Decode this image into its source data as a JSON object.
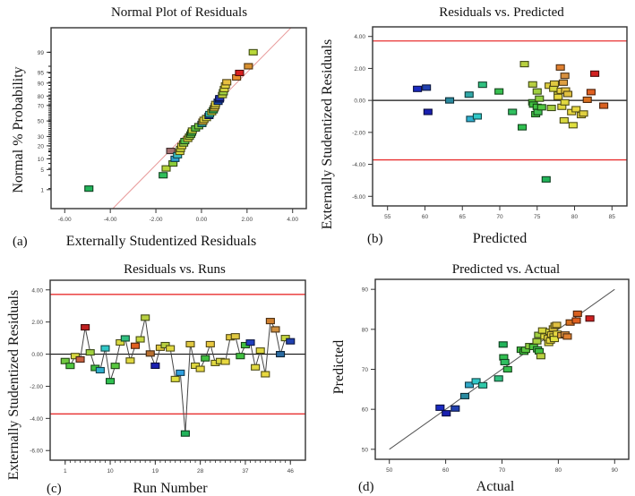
{
  "chart_data": [
    {
      "id": "a",
      "type": "scatter",
      "panel_label": "(a)",
      "title": "Normal Plot of Residuals",
      "xlabel": "Externally Studentized Residuals",
      "ylabel": "Normal % Probability",
      "xlim": [
        -6.6,
        4.6
      ],
      "x_ticks": [
        -6,
        -4,
        -2,
        0,
        2,
        4
      ],
      "x_tick_labels": [
        "-6.00",
        "-4.00",
        "-2.00",
        "0.00",
        "2.00",
        "4.00"
      ],
      "y_scale": "normal-probability",
      "y_ticks": [
        1,
        5,
        10,
        20,
        30,
        50,
        70,
        80,
        90,
        95,
        99
      ],
      "y_tick_labels": [
        "1",
        "5",
        "10",
        "20",
        "30",
        "50",
        "70",
        "80",
        "90",
        "95",
        "99"
      ],
      "reference_line": {
        "color": "#e89a9a",
        "from": [
          -4.05,
          0.1
        ],
        "to": [
          4.1,
          99.95
        ]
      },
      "points": [
        {
          "x": -4.94,
          "y": 1.1,
          "color": "#22b45a"
        },
        {
          "x": -1.68,
          "y": 3.3,
          "color": "#2fbf5a"
        },
        {
          "x": -1.55,
          "y": 5.4,
          "color": "#b5d43a"
        },
        {
          "x": -1.35,
          "y": 15.5,
          "color": "#a77070"
        },
        {
          "x": -1.25,
          "y": 7.5,
          "color": "#8acb3a"
        },
        {
          "x": -1.16,
          "y": 10.0,
          "color": "#2ea0d0"
        },
        {
          "x": -1.05,
          "y": 12.3,
          "color": "#38c0c8"
        },
        {
          "x": -0.95,
          "y": 14.8,
          "color": "#d8d840"
        },
        {
          "x": -0.92,
          "y": 17.2,
          "color": "#c8d43a"
        },
        {
          "x": -0.86,
          "y": 19.8,
          "color": "#e8e040"
        },
        {
          "x": -0.78,
          "y": 22.3,
          "color": "#9ad040"
        },
        {
          "x": -0.73,
          "y": 24.8,
          "color": "#55c84a"
        },
        {
          "x": -0.6,
          "y": 27.2,
          "color": "#e0dc40"
        },
        {
          "x": -0.53,
          "y": 29.7,
          "color": "#a8d040"
        },
        {
          "x": -0.47,
          "y": 32.2,
          "color": "#70c840"
        },
        {
          "x": -0.43,
          "y": 34.7,
          "color": "#3cc050"
        },
        {
          "x": -0.4,
          "y": 37.2,
          "color": "#c0d83a"
        },
        {
          "x": -0.26,
          "y": 40.0,
          "color": "#58c040"
        },
        {
          "x": -0.12,
          "y": 43.0,
          "color": "#78c840"
        },
        {
          "x": 0.02,
          "y": 46.0,
          "color": "#2aa0a0"
        },
        {
          "x": 0.06,
          "y": 49.0,
          "color": "#e8c040"
        },
        {
          "x": 0.11,
          "y": 51.5,
          "color": "#e8d840"
        },
        {
          "x": 0.22,
          "y": 54.0,
          "color": "#d8d840"
        },
        {
          "x": 0.33,
          "y": 56.8,
          "color": "#1a3a90"
        },
        {
          "x": 0.36,
          "y": 59.2,
          "color": "#30c8c0"
        },
        {
          "x": 0.45,
          "y": 61.7,
          "color": "#d0d840"
        },
        {
          "x": 0.52,
          "y": 64.2,
          "color": "#30b858"
        },
        {
          "x": 0.56,
          "y": 66.7,
          "color": "#e0c040"
        },
        {
          "x": 0.6,
          "y": 69.2,
          "color": "#d8c840"
        },
        {
          "x": 0.62,
          "y": 71.7,
          "color": "#e8d840"
        },
        {
          "x": 0.73,
          "y": 74.2,
          "color": "#1a4ab0"
        },
        {
          "x": 0.79,
          "y": 76.7,
          "color": "#1a3ac0"
        },
        {
          "x": 0.8,
          "y": 78.0,
          "color": "#2030b0"
        },
        {
          "x": 0.92,
          "y": 81.0,
          "color": "#c8d840"
        },
        {
          "x": 0.96,
          "y": 83.5,
          "color": "#a0d040"
        },
        {
          "x": 1.0,
          "y": 86.0,
          "color": "#d8d840"
        },
        {
          "x": 1.05,
          "y": 88.5,
          "color": "#e8d840"
        },
        {
          "x": 1.11,
          "y": 90.5,
          "color": "#e8c040"
        },
        {
          "x": 1.54,
          "y": 93.0,
          "color": "#e89030"
        },
        {
          "x": 1.67,
          "y": 94.8,
          "color": "#d82020"
        },
        {
          "x": 2.06,
          "y": 96.8,
          "color": "#d89030"
        },
        {
          "x": 2.27,
          "y": 99.0,
          "color": "#b8d83a"
        }
      ]
    },
    {
      "id": "b",
      "type": "scatter",
      "panel_label": "(b)",
      "title": "Residuals vs. Predicted",
      "xlabel": "Predicted",
      "ylabel": "Externally Studentized Residuals",
      "xlim": [
        53,
        87
      ],
      "ylim": [
        -6.6,
        4.6
      ],
      "x_ticks": [
        55,
        60,
        65,
        70,
        75,
        80,
        85
      ],
      "x_tick_labels": [
        "55",
        "60",
        "65",
        "70",
        "75",
        "80",
        "85"
      ],
      "y_ticks": [
        -6,
        -4,
        -2,
        0,
        2,
        4
      ],
      "y_tick_labels": [
        "-6.00",
        "-4.00",
        "-2.00",
        "0.00",
        "2.00",
        "4.00"
      ],
      "limit_lines": [
        3.72,
        -3.72
      ],
      "limit_color": "#e83030",
      "zero_line": 0,
      "points": [
        {
          "x": 59.0,
          "y": 0.72,
          "color": "#1a2ac0"
        },
        {
          "x": 60.2,
          "y": 0.8,
          "color": "#2040b0"
        },
        {
          "x": 60.4,
          "y": -0.72,
          "color": "#1a20b0"
        },
        {
          "x": 63.3,
          "y": 0.0,
          "color": "#2a8aa0"
        },
        {
          "x": 65.9,
          "y": 0.36,
          "color": "#30a8a8"
        },
        {
          "x": 66.1,
          "y": -1.16,
          "color": "#30b0d0"
        },
        {
          "x": 67.0,
          "y": -1.0,
          "color": "#30c8c8"
        },
        {
          "x": 67.7,
          "y": 0.98,
          "color": "#30c080"
        },
        {
          "x": 69.9,
          "y": 0.56,
          "color": "#38c050"
        },
        {
          "x": 71.7,
          "y": -0.72,
          "color": "#30c060"
        },
        {
          "x": 73.0,
          "y": -1.68,
          "color": "#30c050"
        },
        {
          "x": 73.3,
          "y": 2.27,
          "color": "#b8d040"
        },
        {
          "x": 74.4,
          "y": 1.0,
          "color": "#b8d040"
        },
        {
          "x": 74.4,
          "y": -0.12,
          "color": "#58c840"
        },
        {
          "x": 74.5,
          "y": -0.26,
          "color": "#40c040"
        },
        {
          "x": 74.8,
          "y": -0.86,
          "color": "#40c040"
        },
        {
          "x": 75.0,
          "y": 0.56,
          "color": "#a0d040"
        },
        {
          "x": 75.0,
          "y": -0.4,
          "color": "#40c040"
        },
        {
          "x": 75.1,
          "y": -0.73,
          "color": "#40c050"
        },
        {
          "x": 75.3,
          "y": 0.11,
          "color": "#90d040"
        },
        {
          "x": 75.6,
          "y": -0.43,
          "color": "#50c840"
        },
        {
          "x": 76.6,
          "y": 0.92,
          "color": "#e0d040"
        },
        {
          "x": 76.9,
          "y": -0.47,
          "color": "#a8d040"
        },
        {
          "x": 77.2,
          "y": 0.73,
          "color": "#d8d840"
        },
        {
          "x": 77.3,
          "y": 1.05,
          "color": "#e0c840"
        },
        {
          "x": 77.8,
          "y": 0.36,
          "color": "#d8d840"
        },
        {
          "x": 77.8,
          "y": 0.22,
          "color": "#e8d840"
        },
        {
          "x": 78.1,
          "y": 2.06,
          "color": "#e08030"
        },
        {
          "x": 78.2,
          "y": 0.6,
          "color": "#e8d040"
        },
        {
          "x": 78.3,
          "y": -0.4,
          "color": "#e0d840"
        },
        {
          "x": 78.5,
          "y": 1.11,
          "color": "#e0a040"
        },
        {
          "x": 78.6,
          "y": -1.25,
          "color": "#d8d840"
        },
        {
          "x": 78.7,
          "y": 1.54,
          "color": "#d89040"
        },
        {
          "x": 78.7,
          "y": -0.12,
          "color": "#e0d840"
        },
        {
          "x": 78.8,
          "y": 0.62,
          "color": "#e8c840"
        },
        {
          "x": 79.1,
          "y": 0.4,
          "color": "#e0c040"
        },
        {
          "x": 79.6,
          "y": -0.73,
          "color": "#e8d840"
        },
        {
          "x": 79.8,
          "y": -1.55,
          "color": "#e0e040"
        },
        {
          "x": 80.2,
          "y": -0.55,
          "color": "#e8d840"
        },
        {
          "x": 80.9,
          "y": -0.92,
          "color": "#e8d840"
        },
        {
          "x": 81.2,
          "y": -0.82,
          "color": "#e0d040"
        },
        {
          "x": 81.7,
          "y": 0.04,
          "color": "#d87020"
        },
        {
          "x": 82.2,
          "y": 0.52,
          "color": "#e06020"
        },
        {
          "x": 82.7,
          "y": 1.67,
          "color": "#d02020"
        },
        {
          "x": 83.9,
          "y": -0.33,
          "color": "#d86020"
        },
        {
          "x": 76.2,
          "y": -4.94,
          "color": "#22b45a"
        }
      ]
    },
    {
      "id": "c",
      "type": "line",
      "panel_label": "(c)",
      "title": "Residuals vs. Runs",
      "xlabel": "Run Number",
      "ylabel": "Externally Studentized Residuals",
      "xlim": [
        -2,
        49
      ],
      "ylim": [
        -6.6,
        4.6
      ],
      "x_ticks": [
        1,
        10,
        19,
        28,
        37,
        46
      ],
      "x_tick_labels": [
        "1",
        "10",
        "19",
        "28",
        "37",
        "46"
      ],
      "y_ticks": [
        -6,
        -4,
        -2,
        0,
        2,
        4
      ],
      "y_tick_labels": [
        "-6.00",
        "-4.00",
        "-2.00",
        "0.00",
        "2.00",
        "4.00"
      ],
      "limit_lines": [
        3.72,
        -3.72
      ],
      "limit_color": "#e83030",
      "zero_line": 0,
      "runs": [
        1,
        2,
        3,
        4,
        5,
        6,
        7,
        8,
        9,
        10,
        11,
        12,
        13,
        14,
        15,
        16,
        17,
        18,
        19,
        20,
        21,
        22,
        23,
        24,
        25,
        26,
        27,
        28,
        29,
        30,
        31,
        32,
        33,
        34,
        35,
        36,
        37,
        38,
        39,
        40,
        41,
        42,
        43,
        44,
        45,
        46
      ],
      "values": [
        -0.43,
        -0.73,
        -0.12,
        -0.33,
        1.67,
        0.11,
        -0.86,
        -1.0,
        0.36,
        -1.68,
        -0.73,
        0.73,
        0.98,
        -0.4,
        0.52,
        0.92,
        2.27,
        0.04,
        -0.72,
        0.4,
        0.56,
        0.36,
        -1.55,
        -1.16,
        -4.94,
        0.62,
        -0.72,
        -0.92,
        -0.26,
        0.62,
        -0.55,
        -0.43,
        -0.47,
        1.05,
        1.11,
        -0.12,
        0.56,
        0.72,
        -0.82,
        0.22,
        -1.25,
        2.06,
        1.54,
        0.0,
        1.0,
        0.8
      ],
      "colors": [
        "#70c840",
        "#50c840",
        "#d8d840",
        "#c86040",
        "#c02020",
        "#a0d040",
        "#40c040",
        "#30b0d0",
        "#30c8c8",
        "#30c050",
        "#58c840",
        "#d8d840",
        "#30c080",
        "#e0d840",
        "#e06020",
        "#c8d840",
        "#b8d040",
        "#b87030",
        "#1a20b0",
        "#e0c840",
        "#b8d040",
        "#e0d840",
        "#e0e040",
        "#30a0e0",
        "#22b45a",
        "#e0c840",
        "#e0d840",
        "#e8d840",
        "#40c040",
        "#e8c840",
        "#e0d840",
        "#d8d840",
        "#e8d840",
        "#e0c840",
        "#e0c840",
        "#40c040",
        "#40c040",
        "#2040c0",
        "#e0d840",
        "#e0d840",
        "#e8d840",
        "#d08030",
        "#d09040",
        "#2a6aa0",
        "#c8d840",
        "#2040b0"
      ]
    },
    {
      "id": "d",
      "type": "scatter",
      "panel_label": "(d)",
      "title": "Predicted vs. Actual",
      "xlabel": "Actual",
      "ylabel": "Predicted",
      "xlim": [
        47.5,
        92.5
      ],
      "ylim": [
        47.5,
        92.5
      ],
      "x_ticks": [
        50,
        60,
        70,
        80,
        90
      ],
      "x_tick_labels": [
        "50",
        "60",
        "70",
        "80",
        "90"
      ],
      "y_ticks": [
        50,
        60,
        70,
        80,
        90
      ],
      "y_tick_labels": [
        "50",
        "60",
        "70",
        "80",
        "90"
      ],
      "reference_line": {
        "color": "#555555",
        "from": [
          50,
          50
        ],
        "to": [
          90,
          90
        ]
      },
      "points": [
        {
          "x": 59.0,
          "y": 60.4,
          "color": "#1a2ac0"
        },
        {
          "x": 60.1,
          "y": 59.0,
          "color": "#1a20b0"
        },
        {
          "x": 61.7,
          "y": 60.2,
          "color": "#2040b0"
        },
        {
          "x": 63.4,
          "y": 63.3,
          "color": "#2a8aa0"
        },
        {
          "x": 64.2,
          "y": 66.1,
          "color": "#30a8c8"
        },
        {
          "x": 65.4,
          "y": 67.0,
          "color": "#30c8c8"
        },
        {
          "x": 66.6,
          "y": 66.0,
          "color": "#30c8a8"
        },
        {
          "x": 69.4,
          "y": 67.7,
          "color": "#30c080"
        },
        {
          "x": 70.2,
          "y": 76.2,
          "color": "#22b45a"
        },
        {
          "x": 70.3,
          "y": 73.0,
          "color": "#30c050"
        },
        {
          "x": 70.5,
          "y": 71.8,
          "color": "#30c060"
        },
        {
          "x": 71.0,
          "y": 70.0,
          "color": "#38c050"
        },
        {
          "x": 73.4,
          "y": 74.9,
          "color": "#40c040"
        },
        {
          "x": 73.9,
          "y": 74.4,
          "color": "#40c040"
        },
        {
          "x": 74.2,
          "y": 74.9,
          "color": "#58c840"
        },
        {
          "x": 74.9,
          "y": 75.8,
          "color": "#90d040"
        },
        {
          "x": 75.6,
          "y": 75.6,
          "color": "#50c840"
        },
        {
          "x": 76.2,
          "y": 77.0,
          "color": "#a8d040"
        },
        {
          "x": 76.3,
          "y": 75.0,
          "color": "#40c050"
        },
        {
          "x": 76.5,
          "y": 78.6,
          "color": "#a0d040"
        },
        {
          "x": 76.6,
          "y": 74.5,
          "color": "#40c040"
        },
        {
          "x": 76.9,
          "y": 73.3,
          "color": "#b8d040"
        },
        {
          "x": 77.2,
          "y": 79.7,
          "color": "#d8d840"
        },
        {
          "x": 77.6,
          "y": 78.2,
          "color": "#e0d840"
        },
        {
          "x": 78.2,
          "y": 77.8,
          "color": "#e8d840"
        },
        {
          "x": 78.3,
          "y": 76.6,
          "color": "#e0d840"
        },
        {
          "x": 78.5,
          "y": 79.4,
          "color": "#d8d840"
        },
        {
          "x": 78.6,
          "y": 77.2,
          "color": "#e8d840"
        },
        {
          "x": 78.8,
          "y": 78.7,
          "color": "#e8d040"
        },
        {
          "x": 79.1,
          "y": 80.2,
          "color": "#e0c840"
        },
        {
          "x": 79.2,
          "y": 78.2,
          "color": "#e0d840"
        },
        {
          "x": 79.3,
          "y": 77.6,
          "color": "#e0e040"
        },
        {
          "x": 79.4,
          "y": 80.9,
          "color": "#e0c840"
        },
        {
          "x": 79.7,
          "y": 81.1,
          "color": "#e0c040"
        },
        {
          "x": 79.8,
          "y": 78.9,
          "color": "#e8d840"
        },
        {
          "x": 80.6,
          "y": 78.5,
          "color": "#e0a040"
        },
        {
          "x": 81.2,
          "y": 78.7,
          "color": "#d89040"
        },
        {
          "x": 81.6,
          "y": 78.2,
          "color": "#e08030"
        },
        {
          "x": 82.1,
          "y": 81.7,
          "color": "#d87020"
        },
        {
          "x": 83.2,
          "y": 82.2,
          "color": "#e06020"
        },
        {
          "x": 83.4,
          "y": 83.9,
          "color": "#d86020"
        },
        {
          "x": 85.6,
          "y": 82.7,
          "color": "#d02020"
        }
      ]
    }
  ]
}
